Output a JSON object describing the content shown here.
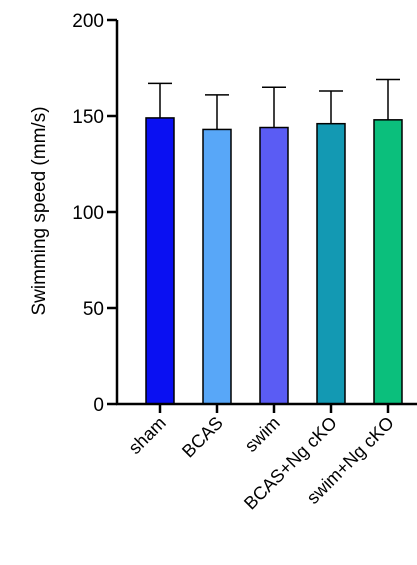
{
  "chart_data": {
    "type": "bar",
    "title": "",
    "xlabel": "",
    "ylabel": "Swimming speed (mm/s)",
    "ylim": [
      0,
      200
    ],
    "yticks": [
      0,
      50,
      100,
      150,
      200
    ],
    "grid": false,
    "categories": [
      "sham",
      "BCAS",
      "swim",
      "BCAS+Ng cKO",
      "swim+Ng cKO"
    ],
    "values": [
      149,
      143,
      144,
      146,
      148
    ],
    "errors": [
      18,
      18,
      21,
      17,
      21
    ],
    "colors": [
      "#0A10F2",
      "#58A7F8",
      "#5A5CF4",
      "#1399B3",
      "#0BBF7C"
    ]
  }
}
